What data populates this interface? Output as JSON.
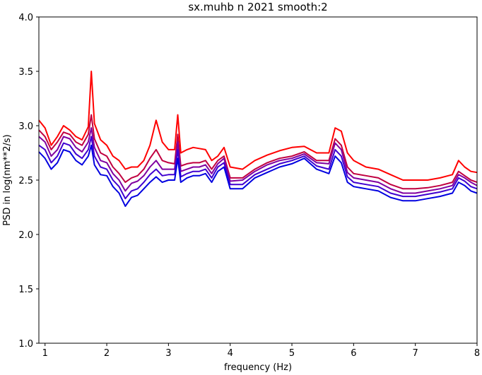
{
  "chart_data": {
    "type": "line",
    "title": "sx.muhb n 2021 smooth:2",
    "xlabel": "frequency (Hz)",
    "ylabel": "PSD in log(nm**2/s)",
    "xlim": [
      0.9,
      8.0
    ],
    "ylim": [
      1.0,
      4.0
    ],
    "x_ticks": [
      1,
      2,
      3,
      4,
      5,
      6,
      7,
      8
    ],
    "x_tick_labels": [
      "1",
      "2",
      "3",
      "4",
      "5",
      "6",
      "7",
      "8"
    ],
    "y_ticks": [
      1.0,
      1.5,
      2.0,
      2.5,
      3.0,
      3.5,
      4.0
    ],
    "y_tick_labels": [
      "1.0",
      "1.5",
      "2.0",
      "2.5",
      "3.0",
      "3.5",
      "4.0"
    ],
    "grid": false,
    "legend": "none",
    "x": [
      0.9,
      1.0,
      1.1,
      1.2,
      1.3,
      1.4,
      1.5,
      1.6,
      1.7,
      1.75,
      1.8,
      1.9,
      2.0,
      2.1,
      2.2,
      2.3,
      2.4,
      2.5,
      2.6,
      2.7,
      2.8,
      2.9,
      3.0,
      3.1,
      3.15,
      3.2,
      3.3,
      3.4,
      3.5,
      3.6,
      3.7,
      3.8,
      3.9,
      4.0,
      4.2,
      4.4,
      4.6,
      4.8,
      5.0,
      5.2,
      5.4,
      5.6,
      5.7,
      5.8,
      5.9,
      6.0,
      6.2,
      6.4,
      6.6,
      6.8,
      7.0,
      7.2,
      7.4,
      7.6,
      7.7,
      7.8,
      7.9,
      8.0
    ],
    "series": [
      {
        "color": "#ff0000",
        "values": [
          3.05,
          2.98,
          2.82,
          2.9,
          3.0,
          2.96,
          2.9,
          2.87,
          2.99,
          3.5,
          3.02,
          2.87,
          2.82,
          2.72,
          2.68,
          2.6,
          2.62,
          2.62,
          2.68,
          2.82,
          3.05,
          2.85,
          2.78,
          2.78,
          3.1,
          2.75,
          2.78,
          2.8,
          2.79,
          2.78,
          2.68,
          2.72,
          2.8,
          2.62,
          2.6,
          2.68,
          2.73,
          2.77,
          2.8,
          2.81,
          2.75,
          2.75,
          2.98,
          2.95,
          2.75,
          2.68,
          2.62,
          2.6,
          2.55,
          2.5,
          2.5,
          2.5,
          2.52,
          2.55,
          2.68,
          2.62,
          2.58,
          2.57
        ]
      },
      {
        "color": "#c00040",
        "values": [
          2.96,
          2.9,
          2.78,
          2.85,
          2.94,
          2.92,
          2.85,
          2.82,
          2.92,
          3.1,
          2.88,
          2.75,
          2.72,
          2.62,
          2.56,
          2.48,
          2.52,
          2.54,
          2.6,
          2.7,
          2.78,
          2.68,
          2.66,
          2.65,
          2.92,
          2.63,
          2.65,
          2.66,
          2.66,
          2.68,
          2.6,
          2.68,
          2.72,
          2.52,
          2.52,
          2.6,
          2.66,
          2.7,
          2.72,
          2.76,
          2.68,
          2.68,
          2.88,
          2.82,
          2.62,
          2.56,
          2.54,
          2.52,
          2.46,
          2.42,
          2.42,
          2.43,
          2.45,
          2.48,
          2.58,
          2.54,
          2.5,
          2.48
        ]
      },
      {
        "color": "#8000a0",
        "values": [
          2.9,
          2.85,
          2.72,
          2.78,
          2.9,
          2.88,
          2.8,
          2.76,
          2.85,
          2.98,
          2.8,
          2.68,
          2.66,
          2.56,
          2.5,
          2.4,
          2.47,
          2.49,
          2.54,
          2.62,
          2.68,
          2.6,
          2.6,
          2.6,
          2.85,
          2.58,
          2.6,
          2.62,
          2.62,
          2.64,
          2.56,
          2.65,
          2.7,
          2.49,
          2.5,
          2.58,
          2.64,
          2.68,
          2.7,
          2.74,
          2.66,
          2.65,
          2.84,
          2.78,
          2.57,
          2.52,
          2.5,
          2.48,
          2.42,
          2.38,
          2.38,
          2.4,
          2.42,
          2.45,
          2.55,
          2.52,
          2.48,
          2.45
        ]
      },
      {
        "color": "#4000d0",
        "values": [
          2.82,
          2.78,
          2.66,
          2.72,
          2.84,
          2.82,
          2.74,
          2.7,
          2.78,
          2.9,
          2.72,
          2.62,
          2.6,
          2.5,
          2.44,
          2.33,
          2.4,
          2.42,
          2.48,
          2.55,
          2.6,
          2.54,
          2.55,
          2.55,
          2.78,
          2.53,
          2.56,
          2.58,
          2.58,
          2.6,
          2.52,
          2.62,
          2.66,
          2.46,
          2.46,
          2.55,
          2.6,
          2.65,
          2.68,
          2.72,
          2.63,
          2.6,
          2.78,
          2.72,
          2.53,
          2.48,
          2.46,
          2.44,
          2.38,
          2.35,
          2.35,
          2.37,
          2.39,
          2.42,
          2.52,
          2.49,
          2.44,
          2.42
        ]
      },
      {
        "color": "#0000e0",
        "values": [
          2.76,
          2.7,
          2.6,
          2.66,
          2.78,
          2.76,
          2.68,
          2.64,
          2.72,
          2.82,
          2.64,
          2.55,
          2.54,
          2.44,
          2.38,
          2.26,
          2.34,
          2.36,
          2.42,
          2.48,
          2.53,
          2.48,
          2.5,
          2.5,
          2.7,
          2.48,
          2.52,
          2.54,
          2.54,
          2.56,
          2.48,
          2.58,
          2.62,
          2.42,
          2.42,
          2.52,
          2.57,
          2.62,
          2.65,
          2.7,
          2.6,
          2.56,
          2.72,
          2.66,
          2.48,
          2.44,
          2.42,
          2.4,
          2.34,
          2.31,
          2.31,
          2.33,
          2.35,
          2.38,
          2.48,
          2.45,
          2.4,
          2.38
        ]
      }
    ]
  }
}
